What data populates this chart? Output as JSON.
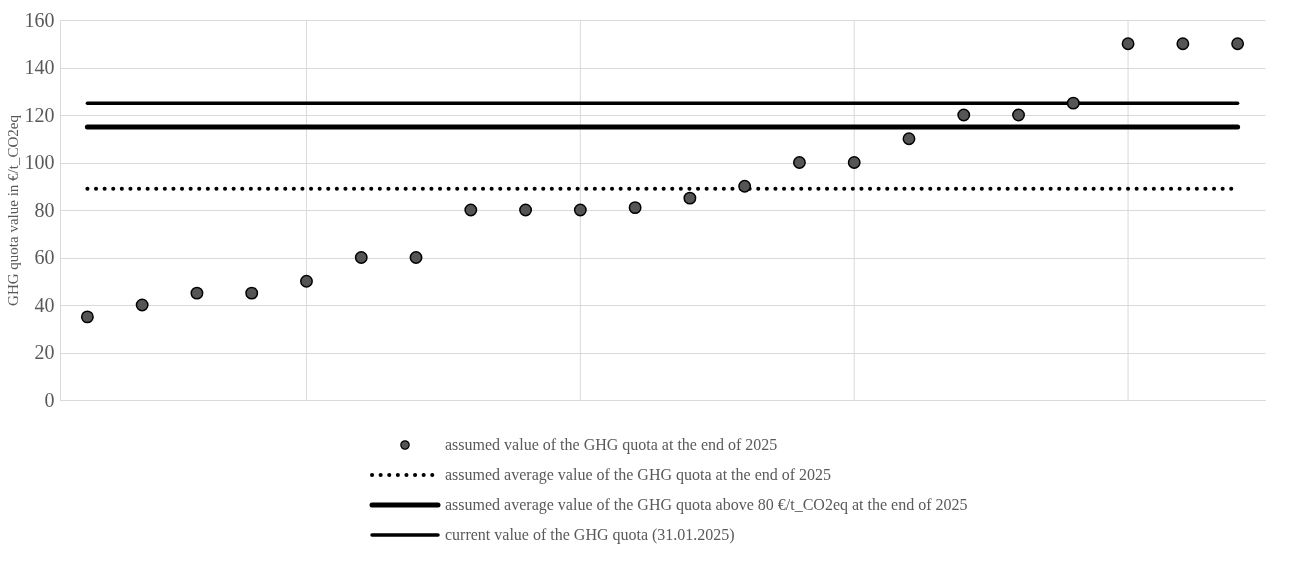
{
  "chart_data": {
    "type": "scatter",
    "ylabel": "GHG quota value in €/t_CO2eq",
    "categories": [
      null,
      null,
      null,
      null,
      null,
      null,
      null,
      null,
      null,
      null,
      null,
      null,
      null,
      null,
      null,
      null,
      null,
      null,
      null,
      null,
      null,
      null
    ],
    "series": [
      {
        "name": "assumed value of the GHG quota at the end of 2025",
        "color": "#000000",
        "values": [
          35,
          40,
          45,
          45,
          50,
          60,
          60,
          80,
          80,
          80,
          81,
          85,
          90,
          100,
          100,
          110,
          120,
          120,
          125,
          150,
          150,
          150
        ]
      }
    ],
    "ref_lines": [
      {
        "axis": "y",
        "value": 89,
        "label": "assumed average value of the GHG quota at the end of 2025",
        "color": "#000000",
        "line_style": "dotted"
      },
      {
        "axis": "y",
        "value": 115,
        "label": "assumed average value of the GHG quota above 80 €/t_CO2eq at the end of 2025",
        "color": "#000000",
        "line_style": "solid"
      },
      {
        "axis": "y",
        "value": 125,
        "label": "current value of the GHG quota (31.01.2025)",
        "color": "#000000",
        "line_style": "solid"
      }
    ],
    "marker": "circle",
    "ylim": [
      0,
      160
    ],
    "yticks": [
      0,
      20,
      40,
      60,
      80,
      100,
      120,
      140,
      160
    ],
    "tick_labels": "y",
    "grid": true,
    "legend": "bottom"
  }
}
